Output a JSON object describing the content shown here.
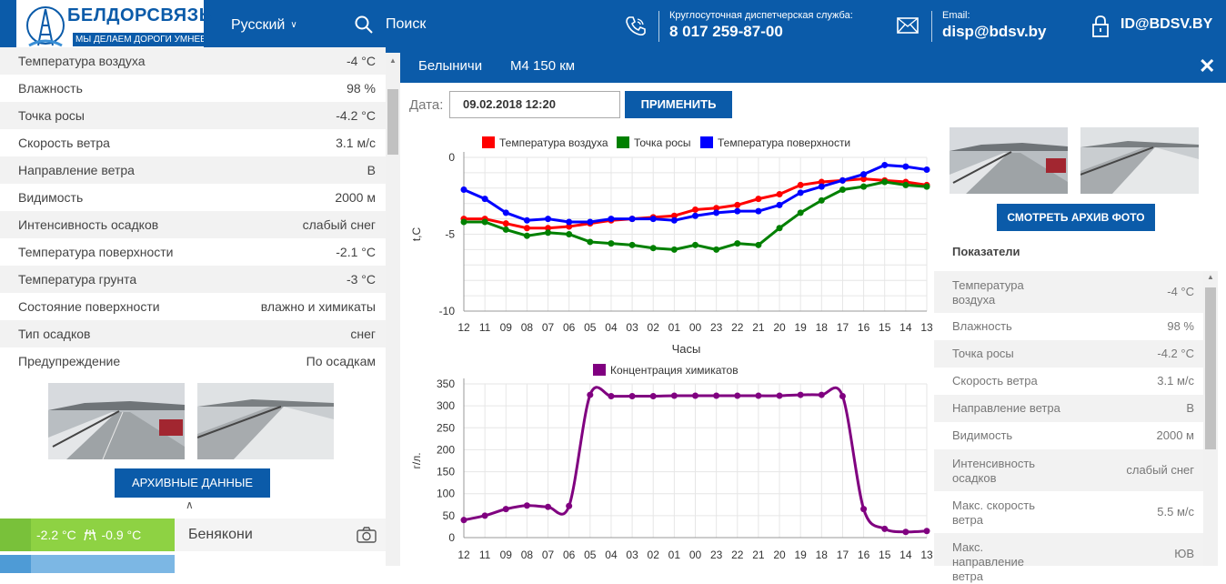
{
  "header": {
    "brand": "БЕЛДОРСВЯЗЬ",
    "slogan": "МЫ ДЕЛАЕМ ДОРОГИ УМНЕЕ",
    "language": "Русский",
    "search_label": "Поиск",
    "dispatch_label": "Круглосуточная диспетчерская служба:",
    "dispatch_phone": "8 017 259-87-00",
    "email_label": "Email:",
    "email": "disp@bdsv.by",
    "login": "ID@BDSV.BY",
    "icons": [
      "phone-icon",
      "mail-icon",
      "lock-icon",
      "search-icon",
      "chevron-down-icon"
    ]
  },
  "left_panel": {
    "params": [
      {
        "name": "Температура воздуха",
        "value": "-4 °C"
      },
      {
        "name": "Влажность",
        "value": "98 %"
      },
      {
        "name": "Точка росы",
        "value": "-4.2 °C"
      },
      {
        "name": "Скорость ветра",
        "value": "3.1 м/с"
      },
      {
        "name": "Направление ветра",
        "value": "В"
      },
      {
        "name": "Видимость",
        "value": "2000 м"
      },
      {
        "name": "Интенсивность осадков",
        "value": "слабый снег"
      },
      {
        "name": "Температура поверхности",
        "value": "-2.1 °C"
      },
      {
        "name": "Температура грунта",
        "value": "-3 °C"
      },
      {
        "name": "Состояние поверхности",
        "value": "влажно и химикаты"
      },
      {
        "name": "Тип осадков",
        "value": "снег"
      },
      {
        "name": "Предупреждение",
        "value": "По осадкам"
      }
    ],
    "archive_button": "АРХИВНЫЕ ДАННЫЕ",
    "station": {
      "temp_air": "-2.2 °C",
      "temp_road": "-0.9 °C",
      "name": "Бенякони"
    }
  },
  "modal": {
    "location": "Белыничи",
    "road": "М4 150 км",
    "date_label": "Дата:",
    "date_value": "09.02.2018 12:20",
    "apply_button": "ПРИМЕНИТЬ",
    "photo_archive_button": "СМОТРЕТЬ АРХИВ ФОТО",
    "indicators_title": "Показатели",
    "indicators": [
      {
        "name": "Температура воздуха",
        "value": "-4 °C"
      },
      {
        "name": "Влажность",
        "value": "98 %"
      },
      {
        "name": "Точка росы",
        "value": "-4.2 °C"
      },
      {
        "name": "Скорость ветра",
        "value": "3.1 м/с"
      },
      {
        "name": "Направление ветра",
        "value": "В"
      },
      {
        "name": "Видимость",
        "value": "2000 м"
      },
      {
        "name": "Интенсивность осадков",
        "value": "слабый снег"
      },
      {
        "name": "Макс. скорость ветра",
        "value": "5.5 м/с"
      },
      {
        "name": "Макс. направление ветра",
        "value": "ЮВ"
      }
    ]
  },
  "chart_data": [
    {
      "type": "line",
      "categories": [
        "12",
        "11",
        "09",
        "08",
        "07",
        "06",
        "05",
        "04",
        "03",
        "02",
        "01",
        "00",
        "23",
        "22",
        "21",
        "20",
        "19",
        "18",
        "17",
        "16",
        "15",
        "14",
        "13"
      ],
      "series": [
        {
          "name": "Температура воздуха",
          "color": "#ff0000",
          "values": [
            -4.0,
            -4.0,
            -4.3,
            -4.6,
            -4.6,
            -4.5,
            -4.3,
            -4.1,
            -4.0,
            -3.9,
            -3.8,
            -3.4,
            -3.3,
            -3.1,
            -2.7,
            -2.4,
            -1.8,
            -1.6,
            -1.5,
            -1.4,
            -1.5,
            -1.6,
            -1.8
          ]
        },
        {
          "name": "Точка росы",
          "color": "#008000",
          "values": [
            -4.2,
            -4.2,
            -4.7,
            -5.1,
            -4.9,
            -5.0,
            -5.5,
            -5.6,
            -5.7,
            -5.9,
            -6.0,
            -5.7,
            -6.0,
            -5.6,
            -5.7,
            -4.6,
            -3.6,
            -2.8,
            -2.1,
            -1.9,
            -1.6,
            -1.8,
            -1.9
          ]
        },
        {
          "name": "Температура поверхности",
          "color": "#0000ff",
          "values": [
            -2.1,
            -2.7,
            -3.6,
            -4.1,
            -4.0,
            -4.2,
            -4.2,
            -4.0,
            -4.0,
            -4.0,
            -4.1,
            -3.8,
            -3.6,
            -3.5,
            -3.5,
            -3.1,
            -2.3,
            -1.9,
            -1.5,
            -1.1,
            -0.5,
            -0.6,
            -0.8
          ]
        }
      ],
      "xlabel": "Часы",
      "ylabel": "t,C",
      "ylim": [
        -10,
        0
      ],
      "yticks": [
        0,
        -5,
        -10
      ],
      "grid": true,
      "legend": "top"
    },
    {
      "type": "line",
      "categories": [
        "12",
        "11",
        "09",
        "08",
        "07",
        "06",
        "05",
        "04",
        "03",
        "02",
        "01",
        "00",
        "23",
        "22",
        "21",
        "20",
        "19",
        "18",
        "17",
        "16",
        "15",
        "14",
        "13"
      ],
      "series": [
        {
          "name": "Концентрация химикатов",
          "color": "#800080",
          "values": [
            40,
            50,
            65,
            73,
            70,
            72,
            325,
            322,
            322,
            322,
            323,
            323,
            323,
            323,
            323,
            323,
            325,
            325,
            322,
            65,
            20,
            13,
            15
          ]
        }
      ],
      "xlabel": "",
      "ylabel": "г/л.",
      "ylim": [
        0,
        350
      ],
      "yticks": [
        0,
        50,
        100,
        150,
        200,
        250,
        300,
        350
      ],
      "grid": true,
      "legend": "top"
    }
  ]
}
